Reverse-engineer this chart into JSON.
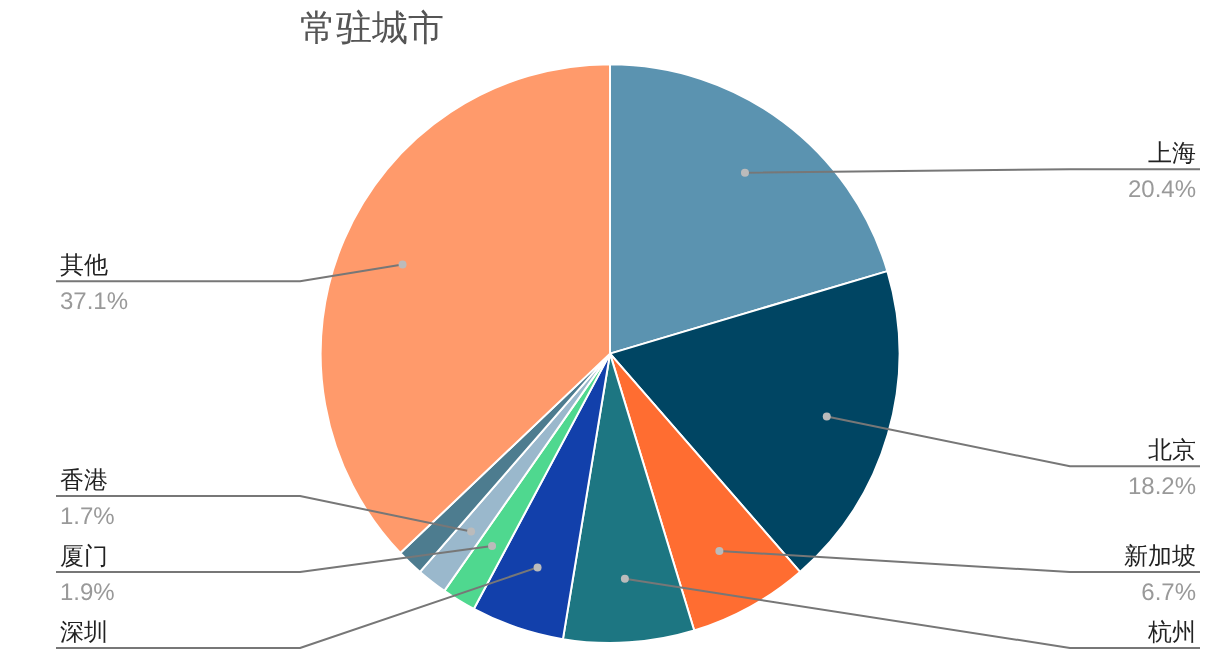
{
  "chart_data": {
    "type": "pie",
    "title": "常驻城市",
    "categories": [
      "上海",
      "北京",
      "新加坡",
      "杭州",
      "深圳",
      "厦门",
      "香港",
      null,
      "其他"
    ],
    "values": [
      20.4,
      18.2,
      6.7,
      7.3,
      5.2,
      1.9,
      1.7,
      1.5,
      37.1
    ],
    "colors": [
      "#5b93b0",
      "#004563",
      "#ff6d31",
      "#1d7682",
      "#1240ab",
      "#4fd88f",
      "#9ab8cc",
      "#4d7c8f",
      "#ff9a6b"
    ],
    "value_labels": [
      "20.4%",
      "18.2%",
      "6.7%",
      null,
      null,
      "1.9%",
      "1.7%",
      null,
      "37.1%"
    ]
  }
}
